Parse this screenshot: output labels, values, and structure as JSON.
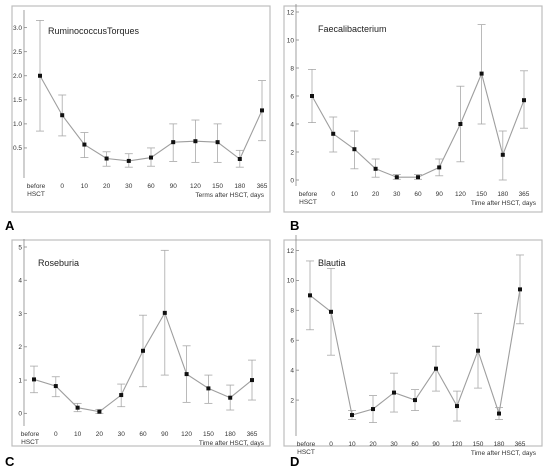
{
  "chart_data": [
    {
      "type": "line",
      "panel_label": "A",
      "title": "RuminococcusTorques",
      "xlabel": "Terms after HSCT, days",
      "categories": [
        "before\nHSCT",
        "0",
        "10",
        "20",
        "30",
        "60",
        "90",
        "120",
        "150",
        "180",
        "365"
      ],
      "ylim": [
        0,
        3.2
      ],
      "yticks": [
        "0.5",
        "1.0",
        "1.5",
        "2.0",
        "2.5",
        "3.0"
      ],
      "series": [
        {
          "values": [
            2.0,
            1.18,
            0.57,
            0.28,
            0.23,
            0.3,
            0.62,
            0.64,
            0.62,
            0.27,
            1.28
          ],
          "lower": [
            0.85,
            0.75,
            0.3,
            0.12,
            0.1,
            0.12,
            0.22,
            0.2,
            0.2,
            0.1,
            0.65
          ],
          "upper": [
            3.15,
            1.6,
            0.82,
            0.42,
            0.38,
            0.5,
            1.0,
            1.08,
            1.0,
            0.45,
            1.9
          ]
        }
      ]
    },
    {
      "type": "line",
      "panel_label": "B",
      "title": "Faecalibacterium",
      "xlabel": "Time after HSCT, days",
      "categories": [
        "before\nHSCT",
        "0",
        "10",
        "20",
        "30",
        "60",
        "90",
        "120",
        "150",
        "180",
        "365"
      ],
      "ylim": [
        0,
        12
      ],
      "yticks": [
        "0",
        "2",
        "4",
        "6",
        "8",
        "10",
        "12"
      ],
      "series": [
        {
          "values": [
            6.0,
            3.3,
            2.2,
            0.8,
            0.2,
            0.2,
            0.9,
            4.0,
            7.6,
            1.8,
            5.7
          ],
          "lower": [
            4.1,
            2.0,
            0.8,
            0.2,
            0.05,
            0.05,
            0.3,
            1.3,
            4.0,
            0.0,
            3.7
          ],
          "upper": [
            7.9,
            4.5,
            3.5,
            1.5,
            0.4,
            0.4,
            1.5,
            6.7,
            11.1,
            3.5,
            7.8
          ]
        }
      ]
    },
    {
      "type": "line",
      "panel_label": "C",
      "title": "Roseburia",
      "xlabel": "Time after HSCT, days",
      "categories": [
        "before\nHSCT",
        "0",
        "10",
        "20",
        "30",
        "60",
        "90",
        "120",
        "150",
        "180",
        "365"
      ],
      "ylim": [
        -0.2,
        5
      ],
      "yticks": [
        "0",
        "1",
        "2",
        "3",
        "4",
        "5"
      ],
      "series": [
        {
          "values": [
            1.02,
            0.82,
            0.17,
            0.05,
            0.55,
            1.88,
            3.02,
            1.18,
            0.75,
            0.47,
            1.0
          ],
          "lower": [
            0.62,
            0.5,
            0.05,
            0.0,
            0.2,
            0.8,
            1.15,
            0.33,
            0.3,
            0.1,
            0.4
          ],
          "upper": [
            1.42,
            1.1,
            0.3,
            0.12,
            0.88,
            2.95,
            4.9,
            2.03,
            1.15,
            0.85,
            1.6
          ]
        }
      ]
    },
    {
      "type": "line",
      "panel_label": "D",
      "title": "Blautia",
      "xlabel": "Time after HSCT, days",
      "categories": [
        "before\nHSCT",
        "0",
        "10",
        "20",
        "30",
        "60",
        "90",
        "120",
        "150",
        "180",
        "365"
      ],
      "ylim": [
        0,
        12.5
      ],
      "yticks": [
        "2",
        "4",
        "6",
        "8",
        "10",
        "12"
      ],
      "series": [
        {
          "values": [
            9.0,
            7.9,
            1.0,
            1.4,
            2.5,
            2.0,
            4.1,
            1.6,
            5.3,
            1.1,
            9.4
          ],
          "lower": [
            6.7,
            5.0,
            0.7,
            0.5,
            1.2,
            1.3,
            2.6,
            0.6,
            2.8,
            0.7,
            7.1
          ],
          "upper": [
            11.3,
            10.8,
            1.3,
            2.3,
            3.8,
            2.7,
            5.6,
            2.6,
            7.8,
            1.5,
            11.7
          ]
        }
      ]
    }
  ]
}
